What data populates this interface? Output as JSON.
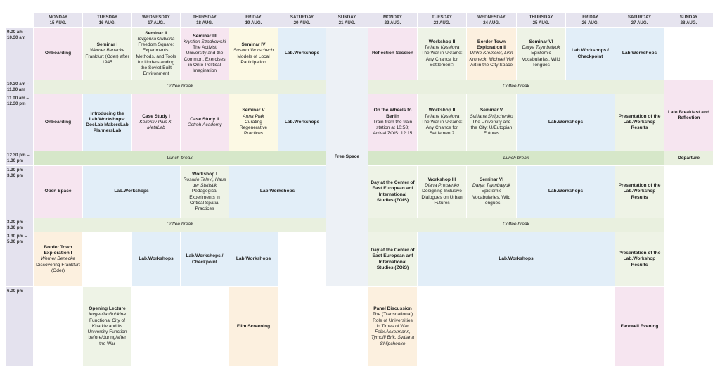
{
  "header": {
    "days": [
      [
        "MONDAY",
        "15 AUG."
      ],
      [
        "TUESDAY",
        "16 AUG."
      ],
      [
        "WEDNESDAY",
        "17 AUG."
      ],
      [
        "THURSDAY",
        "18 AUG."
      ],
      [
        "FRIDAY",
        "19 AUG."
      ],
      [
        "SATURDAY",
        "20 AUG."
      ],
      [
        "SUNDAY",
        "21 AUG."
      ],
      [
        "MONDAY",
        "22 AUG."
      ],
      [
        "TUESDAY",
        "23 AUG."
      ],
      [
        "WEDNESDAY",
        "24 AUG."
      ],
      [
        "THURSDAY",
        "25 AUG."
      ],
      [
        "FRIDAY",
        "26 AUG."
      ],
      [
        "SATURDAY",
        "27 AUG."
      ],
      [
        "SUNDAY",
        "28 AUG."
      ]
    ]
  },
  "times": [
    [
      "9.00 am –",
      "10.30 am"
    ],
    [
      "10.30 am –",
      "11.00 am"
    ],
    [
      "11.00 am –",
      "12.30 pm"
    ],
    [
      "12.30 pm –",
      "1.30 pm"
    ],
    [
      "1.30 pm –",
      "3.00 pm"
    ],
    [
      "3.00 pm –",
      "3.30 pm"
    ],
    [
      "3.30 pm –",
      "5.00 pm"
    ],
    [
      "6.00 pm"
    ]
  ],
  "cells": [
    {
      "color": "#f6e5f0",
      "lines": [
        {
          "text": "Onboarding",
          "style": "bold"
        }
      ]
    },
    {
      "color": "#eef3e6",
      "lines": [
        {
          "text": "Seminar I",
          "style": "bold"
        },
        {
          "text": "Werner Benecke",
          "style": "italic"
        },
        {
          "text": "Frankfurt (Oder) after 1945",
          "style": "normal"
        }
      ]
    },
    {
      "color": "#eef3e6",
      "lines": [
        {
          "text": "Seminar II",
          "style": "bold"
        },
        {
          "text": "Ievgeniia Gubkina",
          "style": "italic"
        },
        {
          "text": "Freedom Square: Experiments, Methods, and Tools for Understanding the Soviet Built Environment",
          "style": "normal"
        }
      ]
    },
    {
      "color": "#f6e5f0",
      "lines": [
        {
          "text": "Seminar III",
          "style": "bold"
        },
        {
          "text": "Krystian Szadkowski",
          "style": "italic"
        },
        {
          "text": "The Activist University and the Common. Exercises in Onto-Political Imagination",
          "style": "normal"
        }
      ]
    },
    {
      "color": "#fcf9e4",
      "lines": [
        {
          "text": "Seminar IV",
          "style": "bold"
        },
        {
          "text": "Susann Worschech",
          "style": "italic"
        },
        {
          "text": "Models of Local Participation",
          "style": "normal"
        }
      ]
    },
    {
      "color": "#e2eef8",
      "lines": [
        {
          "text": "Lab.Workshops",
          "style": "bold"
        }
      ]
    },
    {
      "color": "#edf1f6",
      "lines": [
        {
          "text": "Free Space",
          "style": "bold"
        }
      ]
    },
    {
      "color": "#f6e5f0",
      "lines": [
        {
          "text": "Reflection Session",
          "style": "bold"
        }
      ]
    },
    {
      "color": "#eef3e6",
      "lines": [
        {
          "text": "Workshop II",
          "style": "bold"
        },
        {
          "text": "Tetiana Kyselova",
          "style": "italic"
        },
        {
          "text": "The War in Ukraine: Any Chance for Settlement?",
          "style": "normal"
        }
      ]
    },
    {
      "color": "#fcf0df",
      "lines": [
        {
          "text": "Border Town Exploration II",
          "style": "bold"
        },
        {
          "text": "Ulrike Kremeier, Linn Kroneck, Michael Voll",
          "style": "italic"
        },
        {
          "text": "Art in the City Space",
          "style": "normal"
        }
      ]
    },
    {
      "color": "#eef3e6",
      "lines": [
        {
          "text": "Seminar VI",
          "style": "bold"
        },
        {
          "text": "Darya Tsymbalyuk",
          "style": "italic"
        },
        {
          "text": "Epistemic Vocabularies, Wild Tongues",
          "style": "normal"
        }
      ]
    },
    {
      "color": "#e2eef8",
      "lines": [
        {
          "text": "Lab.Workshops / Checkpoint",
          "style": "bold"
        }
      ]
    },
    {
      "color": "#e2eef8",
      "lines": [
        {
          "text": "Lab.Workshops",
          "style": "bold"
        }
      ]
    },
    {
      "color": "#e9f0df",
      "lines": [
        {
          "text": "Coffee break",
          "style": "italic"
        }
      ]
    },
    {
      "color": "#e9f0df",
      "lines": [
        {
          "text": "Coffee break",
          "style": "italic"
        }
      ]
    },
    {
      "color": "#f6e5f0",
      "lines": [
        {
          "text": "Late Breakfast and Reflection",
          "style": "bold"
        }
      ]
    },
    {
      "color": "#f6e5f0",
      "lines": [
        {
          "text": "Onboarding",
          "style": "bold"
        }
      ]
    },
    {
      "color": "#e2eef8",
      "lines": [
        {
          "text": "Introducing the Lab.Workshops: DocLab MakersLab PlannersLab",
          "style": "bold"
        }
      ]
    },
    {
      "color": "#f6e5f0",
      "lines": [
        {
          "text": "Case Study I",
          "style": "bold"
        },
        {
          "text": "Kollektiv Plus X, MetaLab",
          "style": "italic"
        }
      ]
    },
    {
      "color": "#f6e5f0",
      "lines": [
        {
          "text": "Case Study II",
          "style": "bold"
        },
        {
          "text": "Ostroh Academy",
          "style": "italic"
        }
      ]
    },
    {
      "color": "#fcf9e4",
      "lines": [
        {
          "text": "Seminar V",
          "style": "bold"
        },
        {
          "text": "Anna Ptak",
          "style": "italic"
        },
        {
          "text": "Curating Regenerative Practices",
          "style": "normal"
        }
      ]
    },
    {
      "color": "#e2eef8",
      "lines": [
        {
          "text": "Lab.Workshops",
          "style": "bold"
        }
      ]
    },
    {
      "color": "#f6e5f0",
      "lines": [
        {
          "text": "On the Wheels to Berlin",
          "style": "bold"
        },
        {
          "text": "Train from the train station at 10:58; Arrival ZOiS: 12:15",
          "style": "normal"
        }
      ]
    },
    {
      "color": "#eef3e6",
      "lines": [
        {
          "text": "Workshop II",
          "style": "bold"
        },
        {
          "text": "Tetiana Kyselova",
          "style": "italic"
        },
        {
          "text": "The War in Ukraine: Any Chance for Settlement?",
          "style": "normal"
        }
      ]
    },
    {
      "color": "#eef3e6",
      "lines": [
        {
          "text": "Seminar V",
          "style": "bold"
        },
        {
          "text": "Svitlana Shlipchenko",
          "style": "italic"
        },
        {
          "text": "The University and the City: U/Eutopian Futures",
          "style": "normal"
        }
      ]
    },
    {
      "color": "#e2eef8",
      "lines": [
        {
          "text": "Lab.Workshops",
          "style": "bold"
        }
      ]
    },
    {
      "color": "#eef3e6",
      "lines": [
        {
          "text": "Presentation of the Lab.Workshop Results",
          "style": "bold"
        }
      ]
    },
    {
      "color": "#d6e7c9",
      "lines": [
        {
          "text": "Lunch break",
          "style": "italic"
        }
      ]
    },
    {
      "color": "#d6e7c9",
      "lines": [
        {
          "text": "Lunch break",
          "style": "italic"
        }
      ]
    },
    {
      "color": "#e9f0df",
      "lines": [
        {
          "text": "Departure",
          "style": "bold"
        }
      ]
    },
    {
      "color": "#f6e5f0",
      "lines": [
        {
          "text": "Open Space",
          "style": "bold"
        }
      ]
    },
    {
      "color": "#e2eef8",
      "lines": [
        {
          "text": "Lab.Workshops",
          "style": "bold"
        }
      ]
    },
    {
      "color": "#eef3e6",
      "lines": [
        {
          "text": "Workshop I",
          "style": "bold"
        },
        {
          "text": "Rosario Talevi, Haus der Statistik",
          "style": "italic"
        },
        {
          "text": "Pedagogical Experiments in Critical Spatial Practices",
          "style": "normal"
        }
      ]
    },
    {
      "color": "#e2eef8",
      "lines": [
        {
          "text": "Lab.Workshops",
          "style": "bold"
        }
      ]
    },
    {
      "color": "#eef3e6",
      "lines": [
        {
          "text": "Day at the Center of East European anf International Studies (ZOiS)",
          "style": "bold"
        }
      ]
    },
    {
      "color": "#eef3e6",
      "lines": [
        {
          "text": "Workshop III",
          "style": "bold"
        },
        {
          "text": "Diana Protsenko",
          "style": "italic"
        },
        {
          "text": "Designing Inclusive Dialogues on Urban Futures",
          "style": "normal"
        }
      ]
    },
    {
      "color": "#eef3e6",
      "lines": [
        {
          "text": "Seminar VI",
          "style": "bold"
        },
        {
          "text": "Darya Tsymbalyuk",
          "style": "italic"
        },
        {
          "text": "Epistemic Vocabularies, Wild Tongues",
          "style": "normal"
        }
      ]
    },
    {
      "color": "#e2eef8",
      "lines": [
        {
          "text": "Lab.Workshops",
          "style": "bold"
        }
      ]
    },
    {
      "color": "#eef3e6",
      "lines": [
        {
          "text": "Presentation of the Lab.Workshop Results",
          "style": "bold"
        }
      ]
    },
    {
      "color": "#e9f0df",
      "lines": [
        {
          "text": "Coffee break",
          "style": "italic"
        }
      ]
    },
    {
      "color": "#e9f0df",
      "lines": [
        {
          "text": "Coffee break",
          "style": "italic"
        }
      ]
    },
    {
      "color": "#fcf0df",
      "lines": [
        {
          "text": "Border Town Exploration I",
          "style": "bold"
        },
        {
          "text": "Werner Benecke",
          "style": "italic"
        },
        {
          "text": "Discovering Frankfurt (Oder)",
          "style": "normal"
        }
      ]
    },
    {
      "color": "#e2eef8",
      "lines": [
        {
          "text": "Lab.Workshops",
          "style": "bold"
        }
      ]
    },
    {
      "color": "#e2eef8",
      "lines": [
        {
          "text": "Lab.Workshops / Checkpoint",
          "style": "bold"
        }
      ]
    },
    {
      "color": "#e2eef8",
      "lines": [
        {
          "text": "Lab.Workshops",
          "style": "bold"
        }
      ]
    },
    {
      "color": "#eef3e6",
      "lines": [
        {
          "text": "Day at the Center of East European anf International Studies (ZOiS)",
          "style": "bold"
        }
      ]
    },
    {
      "color": "#e2eef8",
      "lines": [
        {
          "text": "Lab.Workshops",
          "style": "bold"
        }
      ]
    },
    {
      "color": "#eef3e6",
      "lines": [
        {
          "text": "Presentation of the Lab.Workshop Results",
          "style": "bold"
        }
      ]
    },
    {
      "color": "#eef3e6",
      "lines": [
        {
          "text": "Opening Lecture",
          "style": "bold"
        },
        {
          "text": "Ievgeniia Gubkina",
          "style": "italic"
        },
        {
          "text": "Functional City of Kharkiv and its University Function before/during/after the War",
          "style": "normal"
        }
      ]
    },
    {
      "color": "#fcf0df",
      "lines": [
        {
          "text": "Film Screening",
          "style": "bold"
        }
      ]
    },
    {
      "color": "#fcf0df",
      "lines": [
        {
          "text": "Panel Discussion",
          "style": "bold"
        },
        {
          "text": "The (Transnational) Role of Universities in Times of War",
          "style": "normal"
        },
        {
          "text": "Felix Ackermann, Tymofii Brik, Svitlana Shlipchenko",
          "style": "italic"
        }
      ]
    },
    {
      "color": "#f6e5f0",
      "lines": [
        {
          "text": "Farewell Evening",
          "style": "bold"
        }
      ]
    }
  ]
}
